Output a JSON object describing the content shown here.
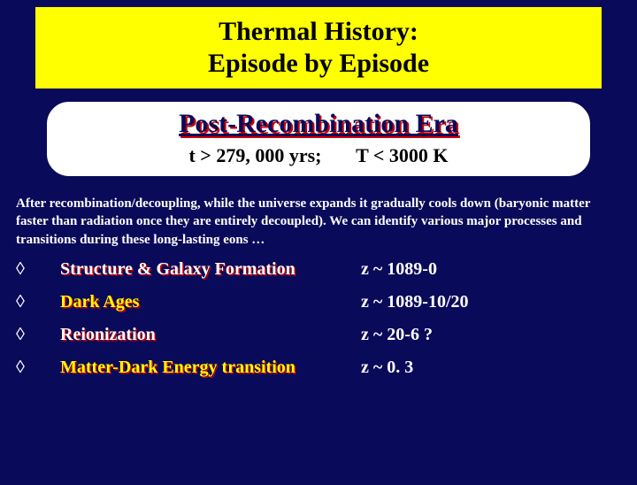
{
  "colors": {
    "background": "#0a0a5a",
    "title_bg": "#ffff00",
    "title_text": "#000000",
    "era_title": "#0a0a5a",
    "shadow_red": "#cc0000",
    "white": "#ffffff",
    "yellow": "#ffff00"
  },
  "title": {
    "line1": "Thermal History:",
    "line2": "Episode by Episode",
    "fontsize": 30
  },
  "era": {
    "title": "Post-Recombination Era",
    "title_fontsize": 30,
    "condition_time": "t > 279, 000 yrs;",
    "condition_temp": "T < 3000 K",
    "condition_fontsize": 22
  },
  "description": "After recombination/decoupling, while the universe expands it gradually cools down (baryonic matter faster than radiation once they are entirely decoupled). We can identify various major processes and transitions during these long-lasting eons …",
  "description_fontsize": 15,
  "bullet_glyph": "◊",
  "items": [
    {
      "label": "Structure & Galaxy Formation",
      "label_color": "white",
      "value": "z ~ 1089-0"
    },
    {
      "label": "Dark Ages",
      "label_color": "yellow",
      "value": "z ~  1089-10/20"
    },
    {
      "label": "Reionization",
      "label_color": "white",
      "value": "z ~  20-6 ?"
    },
    {
      "label": "Matter-Dark Energy transition",
      "label_color": "yellow",
      "value": "z ~ 0. 3"
    }
  ],
  "item_fontsize": 20
}
